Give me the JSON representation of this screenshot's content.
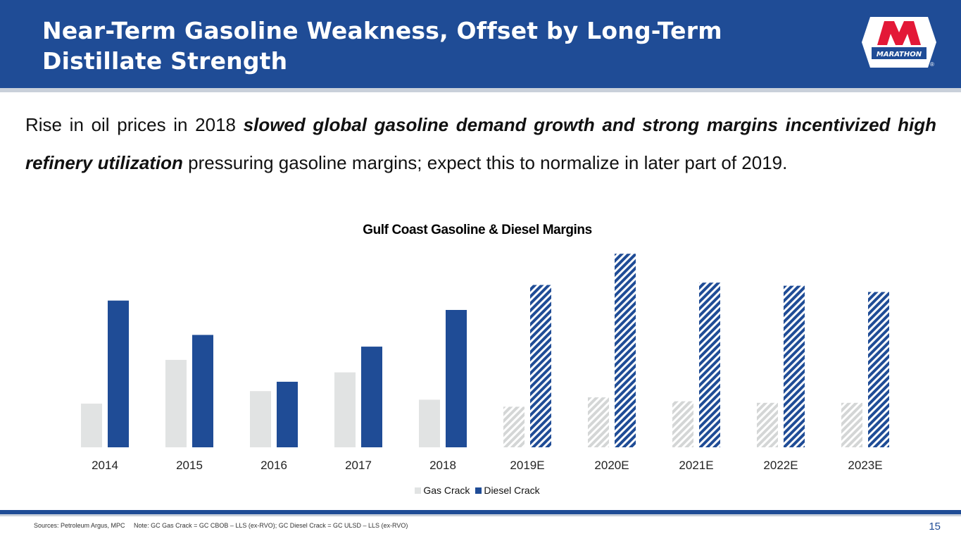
{
  "slide": {
    "title": "Near-Term Gasoline Weakness, Offset by Long-Term Distillate Strength",
    "logo_text": "MARATHON",
    "logo_registered": "®",
    "body": {
      "part1": "Rise in oil prices in 2018 ",
      "emphasis1": "slowed global gasoline demand growth and strong margins incentivized high refinery utilization",
      "part2": " pressuring gasoline margins; expect this to normalize in later part of 2019."
    },
    "sources": "Sources: Petroleum Argus, MPC     Note: GC Gas Crack = GC CBOB – LLS (ex-RVO); GC Diesel Crack = GC ULSD – LLS (ex-RVO)",
    "page_number": "15"
  },
  "colors": {
    "brand_blue": "#1f4c96",
    "gas_grey": "#e1e3e3",
    "hatch_grey": "#d4d6d6",
    "logo_red": "#e31837"
  },
  "chart_data": {
    "type": "bar",
    "title": "Gulf Coast Gasoline & Diesel Margins",
    "xlabel": "",
    "ylabel": "",
    "ylim": [
      0,
      25
    ],
    "grid": false,
    "legend_position": "bottom",
    "categories": [
      "2014",
      "2015",
      "2016",
      "2017",
      "2018",
      "2019E",
      "2020E",
      "2021E",
      "2022E",
      "2023E"
    ],
    "estimated_categories": [
      "2019E",
      "2020E",
      "2021E",
      "2022E",
      "2023E"
    ],
    "series": [
      {
        "name": "Gas Crack",
        "values": [
          5.6,
          11.2,
          7.2,
          9.6,
          6.1,
          5.2,
          6.4,
          5.9,
          5.7,
          5.7
        ]
      },
      {
        "name": "Diesel Crack",
        "values": [
          18.8,
          14.4,
          8.4,
          12.9,
          17.6,
          20.8,
          24.8,
          21.1,
          20.7,
          19.9
        ]
      }
    ]
  }
}
